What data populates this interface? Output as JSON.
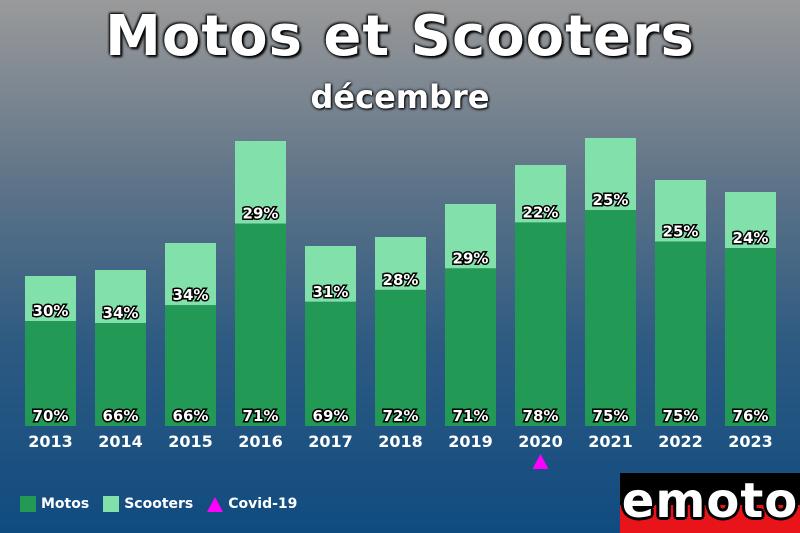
{
  "chart_data": {
    "type": "bar",
    "stacked": true,
    "title": "Motos et Scooters",
    "subtitle": "décembre",
    "categories": [
      "2013",
      "2014",
      "2015",
      "2016",
      "2017",
      "2018",
      "2019",
      "2020",
      "2021",
      "2022",
      "2023"
    ],
    "totals": [
      50,
      52,
      61,
      95,
      60,
      63,
      74,
      87,
      96,
      82,
      78
    ],
    "series": [
      {
        "name": "Motos",
        "color": "#229954",
        "labels": [
          "70%",
          "66%",
          "66%",
          "71%",
          "69%",
          "72%",
          "71%",
          "78%",
          "75%",
          "75%",
          "76%"
        ]
      },
      {
        "name": "Scooters",
        "color": "#82e0aa",
        "labels": [
          "30%",
          "34%",
          "34%",
          "29%",
          "31%",
          "28%",
          "29%",
          "22%",
          "25%",
          "25%",
          "24%"
        ]
      }
    ],
    "motos_share": [
      70,
      66,
      66,
      71,
      69,
      72,
      71,
      78,
      75,
      75,
      76
    ],
    "ylim": [
      0,
      100
    ],
    "legend": {
      "position": "bottom-left",
      "marker_label": "Covid-19",
      "marker_color": "#ff00ff",
      "marker_category": "2020"
    }
  },
  "logo": {
    "text": "emoto"
  }
}
